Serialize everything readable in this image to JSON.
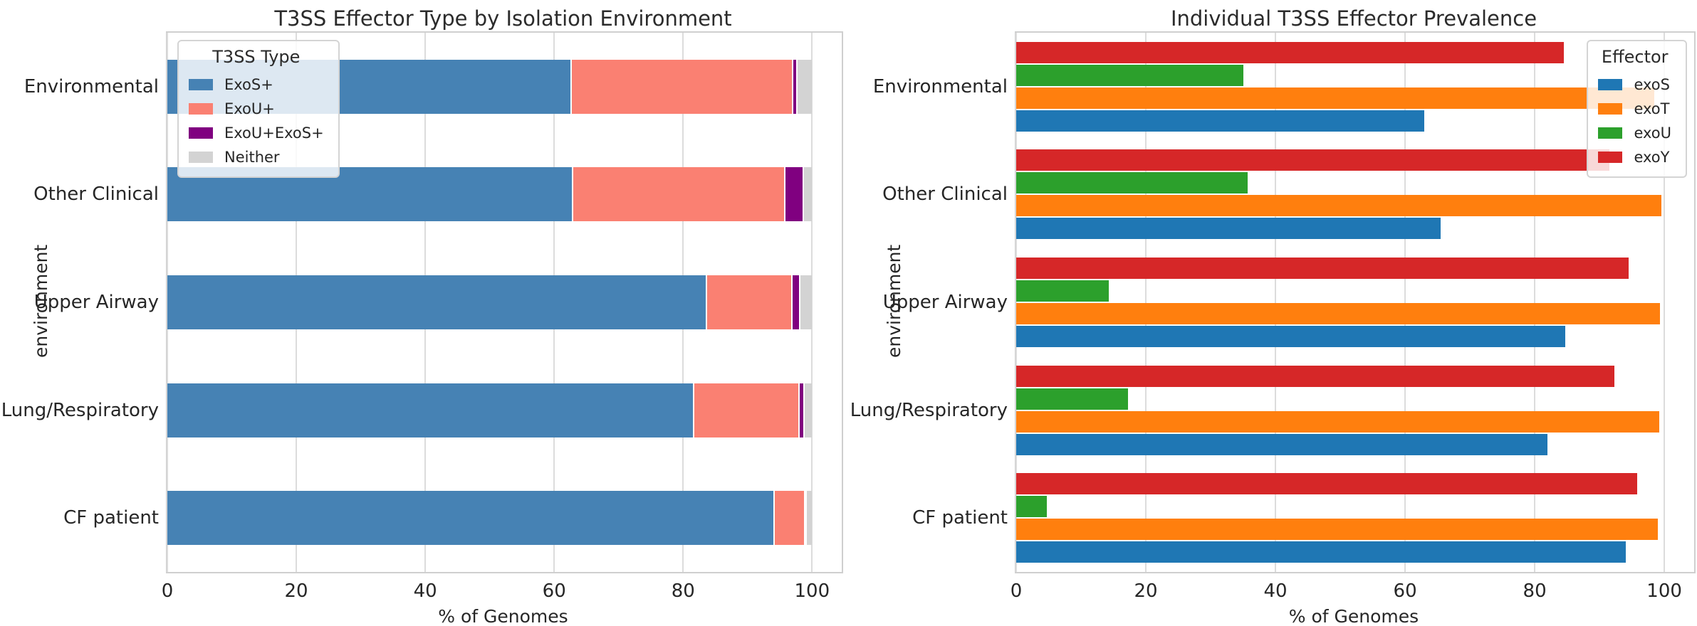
{
  "figure": {
    "background": "#ffffff",
    "text_color": "#262626",
    "grid_color": "#dcdcdc"
  },
  "chart_data": [
    {
      "type": "bar",
      "orientation": "horizontal",
      "stacked": true,
      "title": "T3SS Effector Type by Isolation Environment",
      "xlabel": "% of Genomes",
      "ylabel": "environment",
      "xlim": [
        0,
        104.6
      ],
      "x_ticks": [
        0,
        20,
        40,
        60,
        80,
        100
      ],
      "grid": true,
      "categories_top_to_bottom": [
        "Environmental",
        "Other Clinical",
        "Upper Airway",
        "Lung/Respiratory",
        "CF patient"
      ],
      "legend": {
        "title": "T3SS Type",
        "position": "upper-left"
      },
      "series": [
        {
          "name": "ExoS+",
          "color": "#4682b4",
          "values": [
            62.5,
            62.7,
            83.5,
            81.5,
            94.0
          ]
        },
        {
          "name": "ExoU+",
          "color": "#fa8072",
          "values": [
            34.4,
            33.0,
            13.3,
            16.4,
            4.7
          ]
        },
        {
          "name": "ExoU+ExoS+",
          "color": "#800080",
          "values": [
            0.6,
            2.8,
            1.2,
            0.7,
            0.3
          ]
        },
        {
          "name": "Neither",
          "color": "#d3d3d3",
          "values": [
            2.5,
            1.5,
            2.0,
            1.4,
            1.0
          ]
        }
      ]
    },
    {
      "type": "bar",
      "orientation": "horizontal",
      "stacked": false,
      "title": "Individual T3SS Effector Prevalence",
      "xlabel": "% of Genomes",
      "ylabel": "environment",
      "xlim": [
        0,
        104.6
      ],
      "x_ticks": [
        0,
        20,
        40,
        60,
        80,
        100
      ],
      "grid": true,
      "categories_top_to_bottom": [
        "Environmental",
        "Other Clinical",
        "Upper Airway",
        "Lung/Respiratory",
        "CF patient"
      ],
      "legend": {
        "title": "Effector",
        "position": "upper-right"
      },
      "row_order_top_to_bottom": [
        "exoY",
        "exoU",
        "exoT",
        "exoS"
      ],
      "series": [
        {
          "name": "exoS",
          "color": "#1f77b4",
          "values": [
            63.0,
            65.5,
            84.7,
            82.0,
            94.0
          ]
        },
        {
          "name": "exoT",
          "color": "#ff7f0e",
          "values": [
            98.5,
            99.5,
            99.3,
            99.2,
            99.0
          ]
        },
        {
          "name": "exoU",
          "color": "#2ca02c",
          "values": [
            35.0,
            35.7,
            14.3,
            17.2,
            4.7
          ]
        },
        {
          "name": "exoY",
          "color": "#d62728",
          "values": [
            84.5,
            91.5,
            94.5,
            92.3,
            95.8
          ]
        }
      ]
    }
  ]
}
